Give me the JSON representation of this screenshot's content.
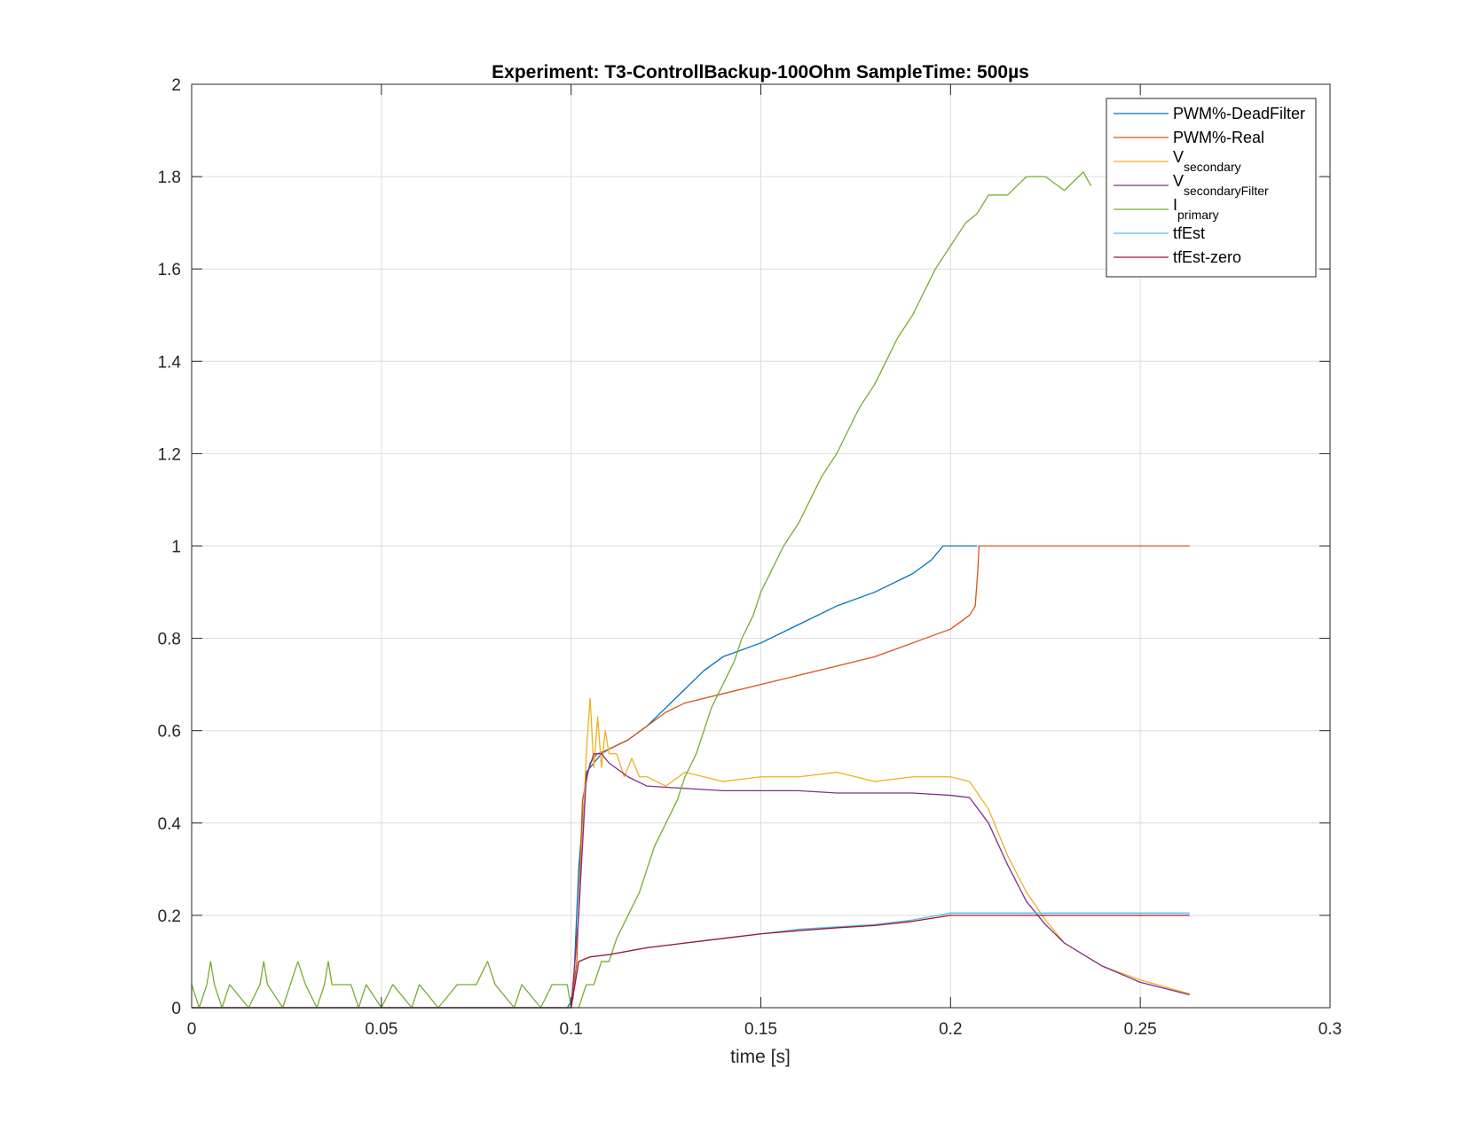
{
  "chart_data": {
    "type": "line",
    "title": "Experiment: T3-ControllBackup-100Ohm   SampleTime: 500µs",
    "xlabel": "time [s]",
    "ylabel": "",
    "xlim": [
      0,
      0.3
    ],
    "ylim": [
      0,
      2
    ],
    "x_ticks": [
      "0",
      "0.05",
      "0.1",
      "0.15",
      "0.2",
      "0.25",
      "0.3"
    ],
    "y_ticks": [
      "0",
      "0.2",
      "0.4",
      "0.6",
      "0.8",
      "1",
      "1.2",
      "1.4",
      "1.6",
      "1.8",
      "2"
    ],
    "grid": true,
    "legend_position": "top-right",
    "series": [
      {
        "name": "PWM%-DeadFilter",
        "color": "#0072BD",
        "points": [
          [
            0,
            0
          ],
          [
            0.099,
            0
          ],
          [
            0.1005,
            0.02
          ],
          [
            0.102,
            0.3
          ],
          [
            0.104,
            0.51
          ],
          [
            0.106,
            0.53
          ],
          [
            0.108,
            0.55
          ],
          [
            0.11,
            0.56
          ],
          [
            0.115,
            0.58
          ],
          [
            0.12,
            0.61
          ],
          [
            0.125,
            0.65
          ],
          [
            0.13,
            0.69
          ],
          [
            0.135,
            0.73
          ],
          [
            0.14,
            0.76
          ],
          [
            0.15,
            0.79
          ],
          [
            0.16,
            0.83
          ],
          [
            0.17,
            0.87
          ],
          [
            0.18,
            0.9
          ],
          [
            0.19,
            0.94
          ],
          [
            0.195,
            0.97
          ],
          [
            0.198,
            1.0
          ],
          [
            0.207,
            1.0
          ]
        ]
      },
      {
        "name": "PWM%-Real",
        "color": "#D95319",
        "points": [
          [
            0,
            0
          ],
          [
            0.1,
            0
          ],
          [
            0.1015,
            0.1
          ],
          [
            0.103,
            0.45
          ],
          [
            0.105,
            0.53
          ],
          [
            0.107,
            0.55
          ],
          [
            0.11,
            0.56
          ],
          [
            0.115,
            0.58
          ],
          [
            0.12,
            0.61
          ],
          [
            0.125,
            0.64
          ],
          [
            0.13,
            0.66
          ],
          [
            0.14,
            0.68
          ],
          [
            0.15,
            0.7
          ],
          [
            0.16,
            0.72
          ],
          [
            0.17,
            0.74
          ],
          [
            0.18,
            0.76
          ],
          [
            0.19,
            0.79
          ],
          [
            0.2,
            0.82
          ],
          [
            0.205,
            0.85
          ],
          [
            0.2065,
            0.87
          ],
          [
            0.2072,
            0.95
          ],
          [
            0.2075,
            1.0
          ],
          [
            0.263,
            1.0
          ]
        ]
      },
      {
        "name": "V",
        "name_sub": "secondary",
        "color": "#EDB120",
        "points": [
          [
            0,
            0
          ],
          [
            0.1,
            0
          ],
          [
            0.102,
            0.2
          ],
          [
            0.104,
            0.55
          ],
          [
            0.105,
            0.67
          ],
          [
            0.106,
            0.52
          ],
          [
            0.107,
            0.63
          ],
          [
            0.108,
            0.52
          ],
          [
            0.109,
            0.6
          ],
          [
            0.11,
            0.55
          ],
          [
            0.112,
            0.55
          ],
          [
            0.114,
            0.5
          ],
          [
            0.116,
            0.54
          ],
          [
            0.118,
            0.5
          ],
          [
            0.12,
            0.5
          ],
          [
            0.125,
            0.48
          ],
          [
            0.13,
            0.51
          ],
          [
            0.135,
            0.5
          ],
          [
            0.14,
            0.49
          ],
          [
            0.15,
            0.5
          ],
          [
            0.16,
            0.5
          ],
          [
            0.17,
            0.51
          ],
          [
            0.18,
            0.49
          ],
          [
            0.19,
            0.5
          ],
          [
            0.2,
            0.5
          ],
          [
            0.205,
            0.49
          ],
          [
            0.21,
            0.43
          ],
          [
            0.215,
            0.33
          ],
          [
            0.22,
            0.25
          ],
          [
            0.225,
            0.19
          ],
          [
            0.23,
            0.14
          ],
          [
            0.24,
            0.09
          ],
          [
            0.25,
            0.06
          ],
          [
            0.263,
            0.03
          ]
        ]
      },
      {
        "name": "V",
        "name_sub": "secondaryFilter",
        "color": "#7E2F8E",
        "points": [
          [
            0,
            0
          ],
          [
            0.1,
            0
          ],
          [
            0.102,
            0.2
          ],
          [
            0.104,
            0.5
          ],
          [
            0.106,
            0.55
          ],
          [
            0.108,
            0.55
          ],
          [
            0.11,
            0.53
          ],
          [
            0.115,
            0.5
          ],
          [
            0.12,
            0.48
          ],
          [
            0.13,
            0.475
          ],
          [
            0.14,
            0.47
          ],
          [
            0.15,
            0.47
          ],
          [
            0.16,
            0.47
          ],
          [
            0.17,
            0.465
          ],
          [
            0.18,
            0.465
          ],
          [
            0.19,
            0.465
          ],
          [
            0.2,
            0.46
          ],
          [
            0.205,
            0.455
          ],
          [
            0.21,
            0.4
          ],
          [
            0.215,
            0.31
          ],
          [
            0.22,
            0.23
          ],
          [
            0.225,
            0.18
          ],
          [
            0.23,
            0.14
          ],
          [
            0.24,
            0.09
          ],
          [
            0.25,
            0.055
          ],
          [
            0.263,
            0.028
          ]
        ]
      },
      {
        "name": "I",
        "name_sub": "primary",
        "color": "#77AC30",
        "points": [
          [
            0,
            0.05
          ],
          [
            0.002,
            0
          ],
          [
            0.004,
            0.05
          ],
          [
            0.005,
            0.1
          ],
          [
            0.006,
            0.05
          ],
          [
            0.008,
            0
          ],
          [
            0.01,
            0.05
          ],
          [
            0.015,
            0
          ],
          [
            0.018,
            0.05
          ],
          [
            0.019,
            0.1
          ],
          [
            0.02,
            0.05
          ],
          [
            0.024,
            0
          ],
          [
            0.026,
            0.05
          ],
          [
            0.028,
            0.1
          ],
          [
            0.03,
            0.05
          ],
          [
            0.033,
            0
          ],
          [
            0.035,
            0.05
          ],
          [
            0.036,
            0.1
          ],
          [
            0.037,
            0.05
          ],
          [
            0.042,
            0.05
          ],
          [
            0.044,
            0
          ],
          [
            0.046,
            0.05
          ],
          [
            0.05,
            0
          ],
          [
            0.053,
            0.05
          ],
          [
            0.058,
            0
          ],
          [
            0.06,
            0.05
          ],
          [
            0.065,
            0
          ],
          [
            0.07,
            0.05
          ],
          [
            0.075,
            0.05
          ],
          [
            0.078,
            0.1
          ],
          [
            0.08,
            0.05
          ],
          [
            0.085,
            0
          ],
          [
            0.087,
            0.05
          ],
          [
            0.092,
            0
          ],
          [
            0.095,
            0.05
          ],
          [
            0.099,
            0.05
          ],
          [
            0.1,
            0
          ],
          [
            0.102,
            0.0
          ],
          [
            0.104,
            0.05
          ],
          [
            0.106,
            0.05
          ],
          [
            0.108,
            0.1
          ],
          [
            0.11,
            0.1
          ],
          [
            0.112,
            0.15
          ],
          [
            0.115,
            0.2
          ],
          [
            0.118,
            0.25
          ],
          [
            0.12,
            0.3
          ],
          [
            0.122,
            0.35
          ],
          [
            0.125,
            0.4
          ],
          [
            0.128,
            0.45
          ],
          [
            0.13,
            0.5
          ],
          [
            0.133,
            0.55
          ],
          [
            0.135,
            0.6
          ],
          [
            0.137,
            0.65
          ],
          [
            0.14,
            0.7
          ],
          [
            0.143,
            0.75
          ],
          [
            0.145,
            0.8
          ],
          [
            0.148,
            0.85
          ],
          [
            0.15,
            0.9
          ],
          [
            0.153,
            0.95
          ],
          [
            0.156,
            1.0
          ],
          [
            0.16,
            1.05
          ],
          [
            0.163,
            1.1
          ],
          [
            0.166,
            1.15
          ],
          [
            0.17,
            1.2
          ],
          [
            0.173,
            1.25
          ],
          [
            0.176,
            1.3
          ],
          [
            0.18,
            1.35
          ],
          [
            0.183,
            1.4
          ],
          [
            0.186,
            1.45
          ],
          [
            0.19,
            1.5
          ],
          [
            0.193,
            1.55
          ],
          [
            0.196,
            1.6
          ],
          [
            0.2,
            1.65
          ],
          [
            0.204,
            1.7
          ],
          [
            0.207,
            1.72
          ],
          [
            0.21,
            1.76
          ],
          [
            0.215,
            1.76
          ],
          [
            0.22,
            1.8
          ],
          [
            0.225,
            1.8
          ],
          [
            0.23,
            1.77
          ],
          [
            0.235,
            1.81
          ],
          [
            0.237,
            1.78
          ]
        ]
      },
      {
        "name": "tfEst",
        "color": "#4DBEEE",
        "points": [
          [
            0,
            0
          ],
          [
            0.1,
            0
          ],
          [
            0.101,
            0.05
          ],
          [
            0.102,
            0.1
          ],
          [
            0.105,
            0.11
          ],
          [
            0.11,
            0.115
          ],
          [
            0.12,
            0.13
          ],
          [
            0.13,
            0.14
          ],
          [
            0.14,
            0.15
          ],
          [
            0.15,
            0.16
          ],
          [
            0.16,
            0.17
          ],
          [
            0.17,
            0.175
          ],
          [
            0.18,
            0.18
          ],
          [
            0.19,
            0.19
          ],
          [
            0.2,
            0.205
          ],
          [
            0.21,
            0.205
          ],
          [
            0.263,
            0.205
          ]
        ]
      },
      {
        "name": "tfEst-zero",
        "color": "#A2142F",
        "points": [
          [
            0,
            0
          ],
          [
            0.1,
            0
          ],
          [
            0.101,
            0.05
          ],
          [
            0.102,
            0.1
          ],
          [
            0.105,
            0.11
          ],
          [
            0.11,
            0.115
          ],
          [
            0.12,
            0.13
          ],
          [
            0.13,
            0.14
          ],
          [
            0.14,
            0.15
          ],
          [
            0.15,
            0.16
          ],
          [
            0.16,
            0.167
          ],
          [
            0.17,
            0.173
          ],
          [
            0.18,
            0.178
          ],
          [
            0.19,
            0.187
          ],
          [
            0.2,
            0.2
          ],
          [
            0.21,
            0.2
          ],
          [
            0.263,
            0.2
          ]
        ]
      }
    ]
  }
}
